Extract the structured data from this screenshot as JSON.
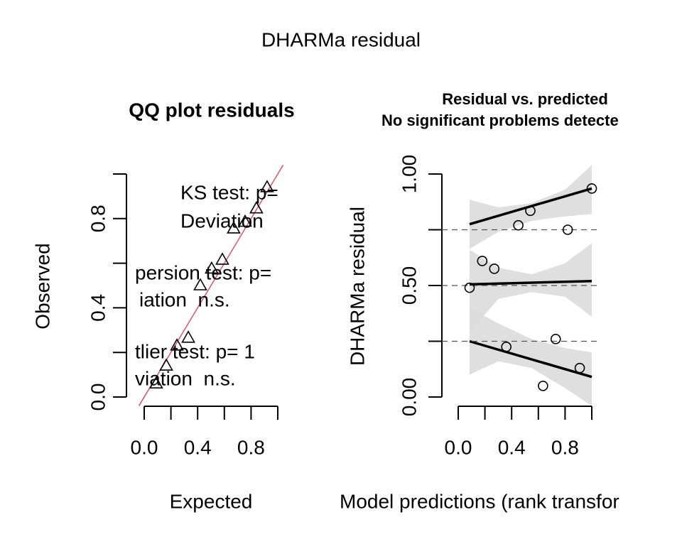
{
  "page_title": "DHARMa residual",
  "chart_data": [
    {
      "type": "scatter",
      "title": "QQ plot residuals",
      "xlabel": "Expected",
      "ylabel": "Observed",
      "marker": "triangle",
      "x": [
        0.09,
        0.165,
        0.245,
        0.33,
        0.42,
        0.505,
        0.585,
        0.67,
        0.755,
        0.84,
        0.92
      ],
      "values": [
        0.06,
        0.14,
        0.23,
        0.265,
        0.5,
        0.575,
        0.615,
        0.755,
        0.785,
        0.845,
        0.94
      ],
      "reference_line": {
        "intercept": 0,
        "slope": 1,
        "color": "#DF536B"
      },
      "annotations": [
        "KS test: p=",
        "Deviation",
        "persion test: p=",
        "iation  n.s.",
        "tlier test: p= 1",
        "viation  n.s."
      ],
      "xlim": [
        -0.04,
        1.04
      ],
      "ylim": [
        -0.04,
        1.04
      ],
      "xticks": [
        {
          "value": 0,
          "label": "0.0"
        },
        {
          "value": 0.4,
          "label": "0.4"
        },
        {
          "value": 0.8,
          "label": "0.8"
        }
      ],
      "xminorticks": [
        0.2,
        0.6,
        1
      ],
      "yticks": [
        {
          "value": 0,
          "label": "0.0"
        },
        {
          "value": 0.4,
          "label": "0.4"
        },
        {
          "value": 0.8,
          "label": "0.8"
        }
      ],
      "yminorticks": [
        0.2,
        0.6,
        1
      ]
    },
    {
      "type": "scatter",
      "title": "Residual vs. predicted",
      "subtitle": "No significant problems detecte",
      "xlabel": "Model predictions (rank transfor",
      "ylabel": "DHARMa residual",
      "marker": "circle",
      "x": [
        0.085,
        0.18,
        0.27,
        0.36,
        0.45,
        0.54,
        0.635,
        0.73,
        0.82,
        0.91,
        1.0
      ],
      "values": [
        0.49,
        0.61,
        0.575,
        0.225,
        0.77,
        0.835,
        0.05,
        0.26,
        0.75,
        0.13,
        0.935
      ],
      "hlines": [
        0.25,
        0.5,
        0.75
      ],
      "fit_lines": [
        {
          "x": [
            0.085,
            1.0
          ],
          "values": [
            0.25,
            0.09
          ]
        },
        {
          "x": [
            0.085,
            1.0
          ],
          "values": [
            0.505,
            0.52
          ]
        },
        {
          "x": [
            0.085,
            1.0
          ],
          "values": [
            0.775,
            0.935
          ]
        }
      ],
      "bands": [
        {
          "x": [
            0.085,
            0.3,
            0.55,
            0.8,
            1.0
          ],
          "upper": [
            0.4,
            0.33,
            0.26,
            0.22,
            0.2
          ],
          "lower": [
            0.1,
            0.16,
            0.13,
            0.04,
            -0.04
          ]
        },
        {
          "x": [
            0.085,
            0.3,
            0.55,
            0.8,
            1.0
          ],
          "upper": [
            0.66,
            0.58,
            0.55,
            0.6,
            0.69
          ],
          "lower": [
            0.29,
            0.44,
            0.47,
            0.45,
            0.36
          ]
        },
        {
          "x": [
            0.085,
            0.3,
            0.55,
            0.8,
            1.0
          ],
          "upper": [
            0.885,
            0.85,
            0.87,
            0.93,
            1.04
          ],
          "lower": [
            0.665,
            0.74,
            0.79,
            0.81,
            0.82
          ]
        }
      ],
      "band_color": "#dcdcdc",
      "xlim": [
        -0.04,
        1.04
      ],
      "ylim": [
        -0.04,
        1.04
      ],
      "xticks": [
        {
          "value": 0,
          "label": "0.0"
        },
        {
          "value": 0.4,
          "label": "0.4"
        },
        {
          "value": 0.8,
          "label": "0.8"
        }
      ],
      "xminorticks": [
        0.2,
        0.6,
        1
      ],
      "yticks": [
        {
          "value": 0,
          "label": "0.00"
        },
        {
          "value": 0.5,
          "label": "0.50"
        },
        {
          "value": 1,
          "label": "1.00"
        }
      ],
      "yminorticks": [
        0.25,
        0.75
      ]
    }
  ]
}
